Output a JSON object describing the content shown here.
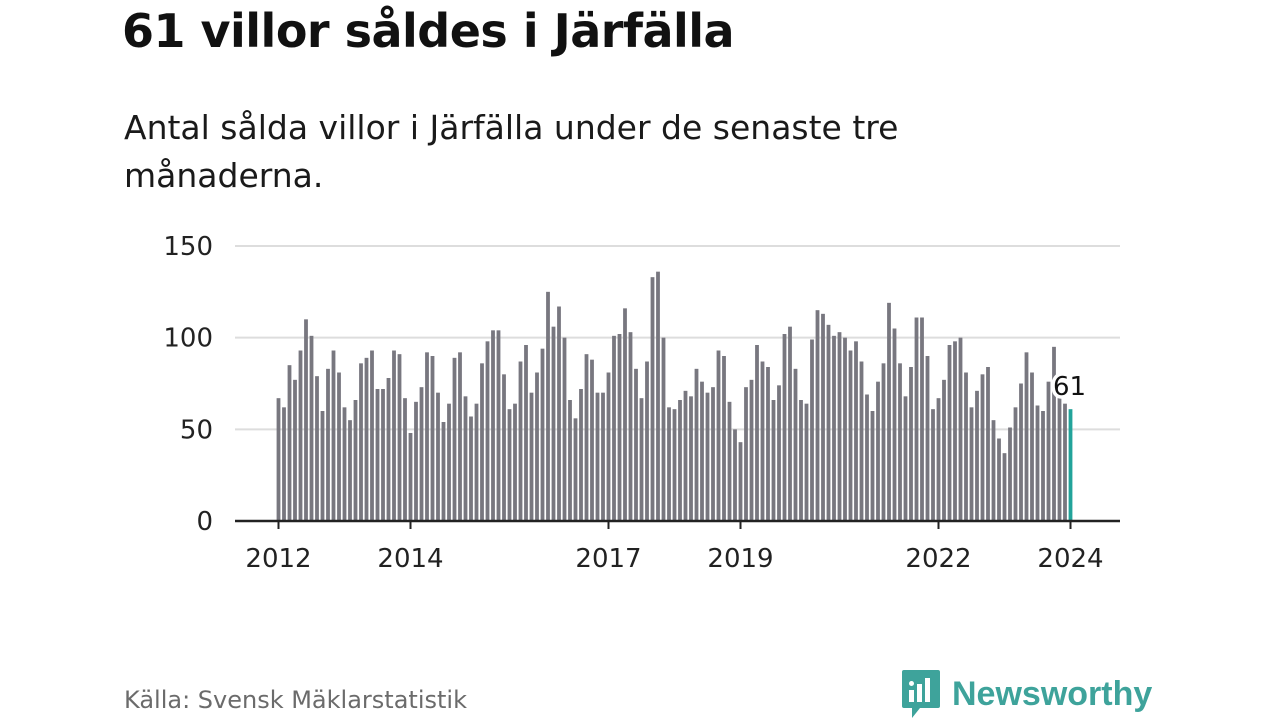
{
  "title": "61 villor såldes i Järfälla",
  "subtitle": "Antal sålda villor i Järfälla under de senaste tre månaderna.",
  "source": "Källa: Svensk Mäklarstatistik",
  "brand": {
    "name": "Newsworthy",
    "icon": "newsworthy-logo-icon"
  },
  "colors": {
    "bar": "#78777f",
    "highlight": "#22a39a",
    "grid": "#dddddd",
    "axis": "#222222",
    "brand": "#3ea39b"
  },
  "chart_data": {
    "type": "bar",
    "title": "61 villor såldes i Järfälla",
    "xlabel": "",
    "ylabel": "",
    "ylim": [
      0,
      150
    ],
    "yticks": [
      0,
      50,
      100,
      150
    ],
    "grid": true,
    "start": "2012-01",
    "xticks": [
      {
        "label": "2012",
        "index": 0
      },
      {
        "label": "2014",
        "index": 24
      },
      {
        "label": "2017",
        "index": 60
      },
      {
        "label": "2019",
        "index": 84
      },
      {
        "label": "2022",
        "index": 120
      },
      {
        "label": "2024",
        "index": 144
      }
    ],
    "values": [
      67,
      62,
      85,
      77,
      93,
      110,
      101,
      79,
      60,
      83,
      93,
      81,
      62,
      55,
      66,
      86,
      89,
      93,
      72,
      72,
      78,
      93,
      91,
      67,
      48,
      65,
      73,
      92,
      90,
      70,
      54,
      64,
      89,
      92,
      68,
      57,
      64,
      86,
      98,
      104,
      104,
      80,
      61,
      64,
      87,
      96,
      70,
      81,
      94,
      125,
      106,
      117,
      100,
      66,
      56,
      72,
      91,
      88,
      70,
      70,
      81,
      101,
      102,
      116,
      103,
      83,
      67,
      87,
      133,
      136,
      100,
      62,
      61,
      66,
      71,
      68,
      83,
      76,
      70,
      73,
      93,
      90,
      65,
      50,
      43,
      73,
      77,
      96,
      87,
      84,
      66,
      74,
      102,
      106,
      83,
      66,
      64,
      99,
      115,
      113,
      107,
      101,
      103,
      100,
      93,
      98,
      87,
      69,
      60,
      76,
      86,
      119,
      105,
      86,
      68,
      84,
      111,
      111,
      90,
      61,
      67,
      77,
      96,
      98,
      100,
      81,
      62,
      71,
      80,
      84,
      55,
      45,
      37,
      51,
      62,
      75,
      92,
      81,
      63,
      60,
      76,
      95,
      67,
      64,
      61
    ],
    "highlight": {
      "index": 144,
      "value": 61,
      "label": "61"
    }
  }
}
